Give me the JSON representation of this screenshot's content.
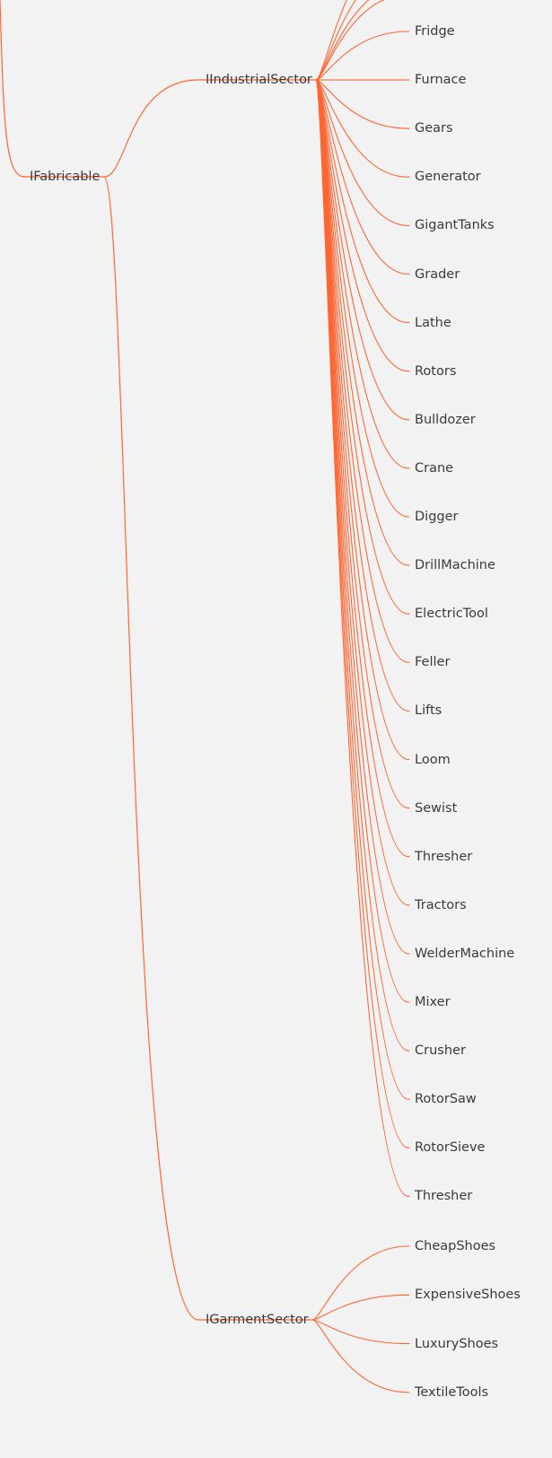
{
  "theme": {
    "background": "#f2f2f2",
    "edge_color": "#ff6633",
    "text_color": "#3a3a3a"
  },
  "root": {
    "label": "IFabricable"
  },
  "branches": [
    {
      "label": "IIndustrialSector",
      "children": [
        "Fridge",
        "Furnace",
        "Gears",
        "Generator",
        "GigantTanks",
        "Grader",
        "Lathe",
        "Rotors",
        "Bulldozer",
        "Crane",
        "Digger",
        "DrillMachine",
        "ElectricTool",
        "Feller",
        "Lifts",
        "Loom",
        "Sewist",
        "Thresher",
        "Tractors",
        "WelderMachine",
        "Mixer",
        "Crusher",
        "RotorSaw",
        "RotorSieve",
        "Thresher"
      ]
    },
    {
      "label": "IGarmentSector",
      "children": [
        "CheapShoes",
        "ExpensiveShoes",
        "LuxuryShoes",
        "TextileTools"
      ]
    }
  ]
}
